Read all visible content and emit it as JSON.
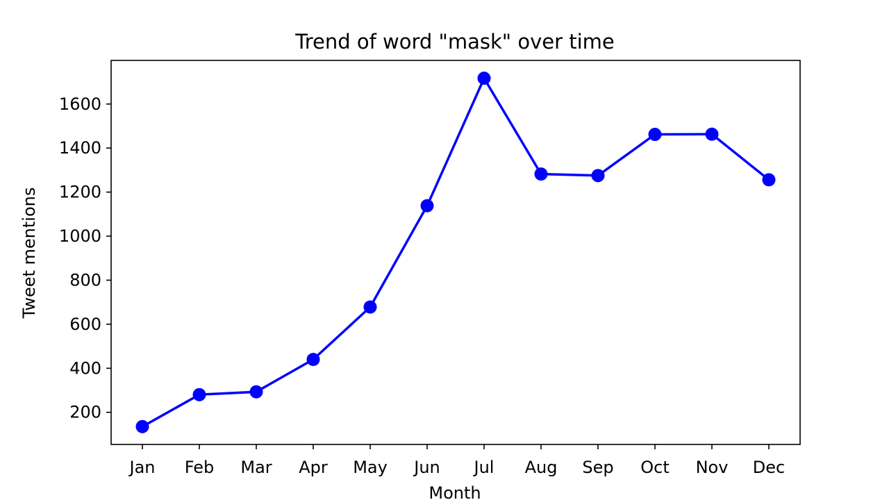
{
  "chart_data": {
    "type": "line",
    "title": "Trend of word \"mask\" over time",
    "xlabel": "Month",
    "ylabel": "Tweet mentions",
    "categories": [
      "Jan",
      "Feb",
      "Mar",
      "Apr",
      "May",
      "Jun",
      "Jul",
      "Aug",
      "Sep",
      "Oct",
      "Nov",
      "Dec"
    ],
    "series": [
      {
        "values": [
          135,
          280,
          293,
          440,
          678,
          1138,
          1717,
          1282,
          1275,
          1462,
          1463,
          1256
        ],
        "color": "#0000ff",
        "marker": "circle"
      }
    ],
    "yticks": [
      200,
      400,
      600,
      800,
      1000,
      1200,
      1400,
      1600
    ],
    "ylim": [
      54,
      1798
    ],
    "grid": false,
    "legend": "none"
  }
}
